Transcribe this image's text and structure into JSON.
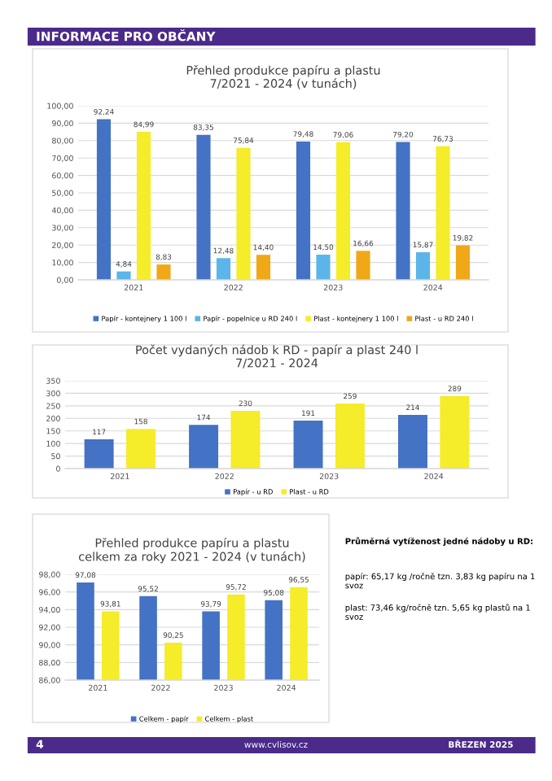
{
  "chart_data": [
    {
      "type": "bar",
      "title": "Přehled produkce papíru a plastu\n7/2021 - 2024 (v tunách)",
      "categories": [
        "2021",
        "2022",
        "2023",
        "2024"
      ],
      "series": [
        {
          "name": "Papír - kontejnery 1 100 l",
          "color": "#4472c4",
          "values": [
            92.24,
            83.35,
            79.48,
            79.2
          ],
          "value_labels": [
            "92,24",
            "83,35",
            "79,48",
            "79,20"
          ]
        },
        {
          "name": "Papír - popelnice u RD 240 l",
          "color": "#5bb5e8",
          "values": [
            4.84,
            12.48,
            14.5,
            15.87
          ],
          "value_labels": [
            "4,84",
            "12,48",
            "14,50",
            "15,87"
          ]
        },
        {
          "name": "Plast - kontejnery 1 100 l",
          "color": "#f5ec2a",
          "values": [
            84.99,
            75.84,
            79.06,
            76.73
          ],
          "value_labels": [
            "84,99",
            "75,84",
            "79,06",
            "76,73"
          ]
        },
        {
          "name": "Plast - u RD 240 l",
          "color": "#f0a818",
          "values": [
            8.83,
            14.4,
            16.66,
            19.82
          ],
          "value_labels": [
            "8,83",
            "14,40",
            "16,66",
            "19,82"
          ]
        }
      ],
      "ylim": [
        0,
        100
      ],
      "yticks": [
        {
          "value": 0,
          "label": "0,00"
        },
        {
          "value": 10,
          "label": "10,00"
        },
        {
          "value": 20,
          "label": "20,00"
        },
        {
          "value": 30,
          "label": "30,00"
        },
        {
          "value": 40,
          "label": "40,00"
        },
        {
          "value": 50,
          "label": "50,00"
        },
        {
          "value": 60,
          "label": "60,00"
        },
        {
          "value": 70,
          "label": "70,00"
        },
        {
          "value": 80,
          "label": "80,00"
        },
        {
          "value": 90,
          "label": "90,00"
        },
        {
          "value": 100,
          "label": "100,00"
        }
      ],
      "grid": "y",
      "legend": "bottom"
    },
    {
      "type": "bar",
      "title": "Počet vydaných nádob k RD - papír a plast 240 l\n7/2021 - 2024",
      "categories": [
        "2021",
        "2022",
        "2023",
        "2024"
      ],
      "series": [
        {
          "name": "Papír - u RD",
          "color": "#4472c4",
          "values": [
            117,
            174,
            191,
            214
          ]
        },
        {
          "name": "Plast - u RD",
          "color": "#f5ec2a",
          "values": [
            158,
            230,
            259,
            289
          ]
        }
      ],
      "ylim": [
        0,
        350
      ],
      "yticks": [
        0,
        50,
        100,
        150,
        200,
        250,
        300,
        350
      ],
      "data_labels": true,
      "grid": "y",
      "legend": "bottom"
    },
    {
      "type": "bar",
      "title": "Přehled produkce papíru a plastu\ncelkem za roky 2021 - 2024 (v tunách)",
      "categories": [
        "2021",
        "2022",
        "2023",
        "2024"
      ],
      "series": [
        {
          "name": "Celkem - papír",
          "color": "#4472c4",
          "values": [
            97.08,
            95.52,
            93.79,
            95.08
          ],
          "value_labels": [
            "97,08",
            "95,52",
            "93,79",
            "95,08"
          ]
        },
        {
          "name": "Celkem - plast",
          "color": "#f5ec2a",
          "values": [
            93.81,
            90.25,
            95.72,
            96.55
          ],
          "value_labels": [
            "93,81",
            "90,25",
            "95,72",
            "96,55"
          ]
        }
      ],
      "ylim": [
        86,
        98
      ],
      "yticks": [
        {
          "value": 86,
          "label": "86,00"
        },
        {
          "value": 88,
          "label": "88,00"
        },
        {
          "value": 90,
          "label": "90,00"
        },
        {
          "value": 92,
          "label": "92,00"
        },
        {
          "value": 94,
          "label": "94,00"
        },
        {
          "value": 96,
          "label": "96,00"
        },
        {
          "value": 98,
          "label": "98,00"
        }
      ],
      "grid": "y",
      "legend": "bottom"
    },
    {
      "type": "other",
      "annotations": [
        "INFORMACE PRO OBČANY",
        "Průměrná vytíženost jedné nádoby u RD:",
        "papír: 65,17 kg /ročně tzn. 3,83 kg papíru na 1 svoz",
        "plast: 73,46 kg/ročně tzn. 5,65 kg plastů na 1 svoz",
        "4",
        "www.cvlisov.cz",
        "BŘEZEN 2025"
      ]
    }
  ]
}
